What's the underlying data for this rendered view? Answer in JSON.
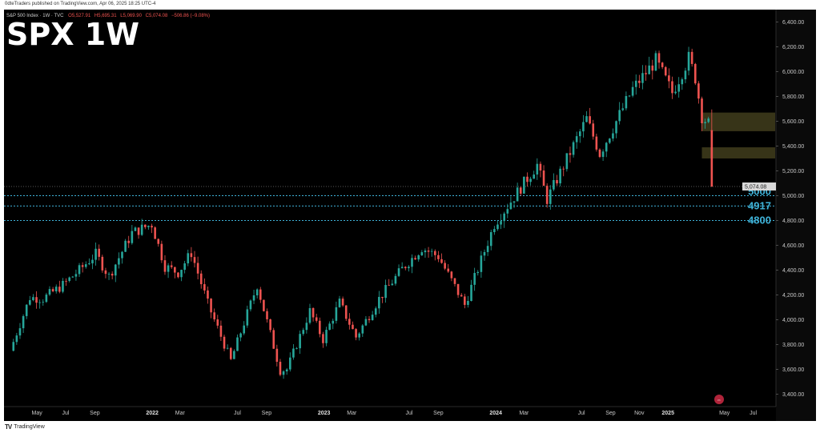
{
  "header": {
    "publisher_line": "0dteTraders published on TradingView.com, Apr 06, 2025 18:25 UTC-4"
  },
  "footer": {
    "brand": "TradingView",
    "brand_icon": "tradingview-logo-icon"
  },
  "chart_data": {
    "type": "candlestick",
    "title": "SPX 1W",
    "symbol_line": "S&P 500 Index · 1W · TVC",
    "ohlc_readout": {
      "open": "O5,527.91",
      "high": "H5,695.31",
      "low": "L5,069.90",
      "close": "C5,074.08",
      "change": "−506.86 (−9.08%)"
    },
    "last_price_label": "5,074.08",
    "y_axis": {
      "position": "right",
      "range": [
        3300,
        6500
      ],
      "ticks": [
        "3,400.00",
        "3,600.00",
        "3,800.00",
        "4,000.00",
        "4,200.00",
        "4,400.00",
        "4,600.00",
        "4,800.00",
        "5,000.00",
        "5,200.00",
        "5,400.00",
        "5,600.00",
        "5,800.00",
        "6,000.00",
        "6,200.00",
        "6,400.00"
      ]
    },
    "x_axis": {
      "ticks": [
        {
          "label": "May",
          "date": "2021-05-01",
          "year": false
        },
        {
          "label": "Jul",
          "date": "2021-07-01",
          "year": false
        },
        {
          "label": "Sep",
          "date": "2021-09-01",
          "year": false
        },
        {
          "label": "2022",
          "date": "2022-01-01",
          "year": true
        },
        {
          "label": "Mar",
          "date": "2022-03-01",
          "year": false
        },
        {
          "label": "Jul",
          "date": "2022-07-01",
          "year": false
        },
        {
          "label": "Sep",
          "date": "2022-09-01",
          "year": false
        },
        {
          "label": "2023",
          "date": "2023-01-01",
          "year": true
        },
        {
          "label": "Mar",
          "date": "2023-03-01",
          "year": false
        },
        {
          "label": "Jul",
          "date": "2023-07-01",
          "year": false
        },
        {
          "label": "Sep",
          "date": "2023-09-01",
          "year": false
        },
        {
          "label": "2024",
          "date": "2024-01-01",
          "year": true
        },
        {
          "label": "Mar",
          "date": "2024-03-01",
          "year": false
        },
        {
          "label": "Jul",
          "date": "2024-07-01",
          "year": false
        },
        {
          "label": "Sep",
          "date": "2024-09-01",
          "year": false
        },
        {
          "label": "Nov",
          "date": "2024-11-01",
          "year": false
        },
        {
          "label": "2025",
          "date": "2025-01-01",
          "year": true
        },
        {
          "label": "May",
          "date": "2025-05-01",
          "year": false
        },
        {
          "label": "Jul",
          "date": "2025-07-01",
          "year": false
        }
      ]
    },
    "horizontal_levels": [
      {
        "label": "5000",
        "value": 5000
      },
      {
        "label": "4917",
        "value": 4917
      },
      {
        "label": "4800",
        "value": 4800
      }
    ],
    "zones": [
      {
        "from": 5520,
        "to": 5670
      },
      {
        "from": 5300,
        "to": 5390
      }
    ],
    "up_color": "#26a69a",
    "down_color": "#ef5350",
    "background": "#000000",
    "price_path": [
      [
        "2021-03-05",
        3750
      ],
      [
        "2021-04-16",
        4180
      ],
      [
        "2021-05-14",
        4170
      ],
      [
        "2021-06-25",
        4280
      ],
      [
        "2021-07-30",
        4400
      ],
      [
        "2021-09-03",
        4530
      ],
      [
        "2021-10-01",
        4350
      ],
      [
        "2021-11-19",
        4700
      ],
      [
        "2021-12-31",
        4770
      ],
      [
        "2022-01-28",
        4430
      ],
      [
        "2022-02-25",
        4380
      ],
      [
        "2022-03-25",
        4540
      ],
      [
        "2022-04-29",
        4130
      ],
      [
        "2022-06-17",
        3670
      ],
      [
        "2022-08-12",
        4280
      ],
      [
        "2022-09-30",
        3590
      ],
      [
        "2022-10-14",
        3600
      ],
      [
        "2022-12-02",
        4070
      ],
      [
        "2022-12-30",
        3840
      ],
      [
        "2023-02-03",
        4140
      ],
      [
        "2023-03-10",
        3860
      ],
      [
        "2023-04-28",
        4170
      ],
      [
        "2023-06-16",
        4410
      ],
      [
        "2023-07-28",
        4580
      ],
      [
        "2023-09-01",
        4510
      ],
      [
        "2023-10-27",
        4120
      ],
      [
        "2023-12-29",
        4770
      ],
      [
        "2024-03-29",
        5250
      ],
      [
        "2024-04-19",
        4970
      ],
      [
        "2024-07-12",
        5620
      ],
      [
        "2024-08-09",
        5340
      ],
      [
        "2024-10-18",
        5860
      ],
      [
        "2024-12-06",
        6090
      ],
      [
        "2025-01-10",
        5830
      ],
      [
        "2025-02-14",
        6110
      ],
      [
        "2025-02-28",
        5950
      ],
      [
        "2025-03-14",
        5640
      ],
      [
        "2025-03-28",
        5580
      ],
      [
        "2025-04-04",
        5074
      ]
    ]
  }
}
